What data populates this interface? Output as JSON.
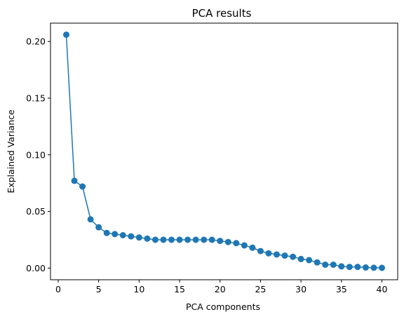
{
  "chart_data": {
    "type": "line",
    "title": "PCA results",
    "xlabel": "PCA components",
    "ylabel": "Explained Variance",
    "xlim": [
      -0.95,
      41.95
    ],
    "ylim": [
      -0.0103,
      0.2162
    ],
    "xticks": [
      0,
      5,
      10,
      15,
      20,
      25,
      30,
      35,
      40
    ],
    "yticks": [
      0.0,
      0.05,
      0.1,
      0.15,
      0.2
    ],
    "xtick_labels": [
      "0",
      "5",
      "10",
      "15",
      "20",
      "25",
      "30",
      "35",
      "40"
    ],
    "ytick_labels": [
      "0.00",
      "0.05",
      "0.10",
      "0.15",
      "0.20"
    ],
    "grid": false,
    "marker": "circle",
    "color": "#1f77b4",
    "x": [
      1,
      2,
      3,
      4,
      5,
      6,
      7,
      8,
      9,
      10,
      11,
      12,
      13,
      14,
      15,
      16,
      17,
      18,
      19,
      20,
      21,
      22,
      23,
      24,
      25,
      26,
      27,
      28,
      29,
      30,
      31,
      32,
      33,
      34,
      35,
      36,
      37,
      38,
      39,
      40
    ],
    "y": [
      0.206,
      0.077,
      0.072,
      0.043,
      0.036,
      0.031,
      0.03,
      0.029,
      0.028,
      0.027,
      0.026,
      0.025,
      0.025,
      0.025,
      0.025,
      0.025,
      0.025,
      0.025,
      0.025,
      0.024,
      0.023,
      0.022,
      0.02,
      0.018,
      0.015,
      0.013,
      0.012,
      0.011,
      0.01,
      0.008,
      0.007,
      0.005,
      0.003,
      0.003,
      0.0015,
      0.001,
      0.001,
      0.0005,
      0.0003,
      0.0002
    ]
  }
}
